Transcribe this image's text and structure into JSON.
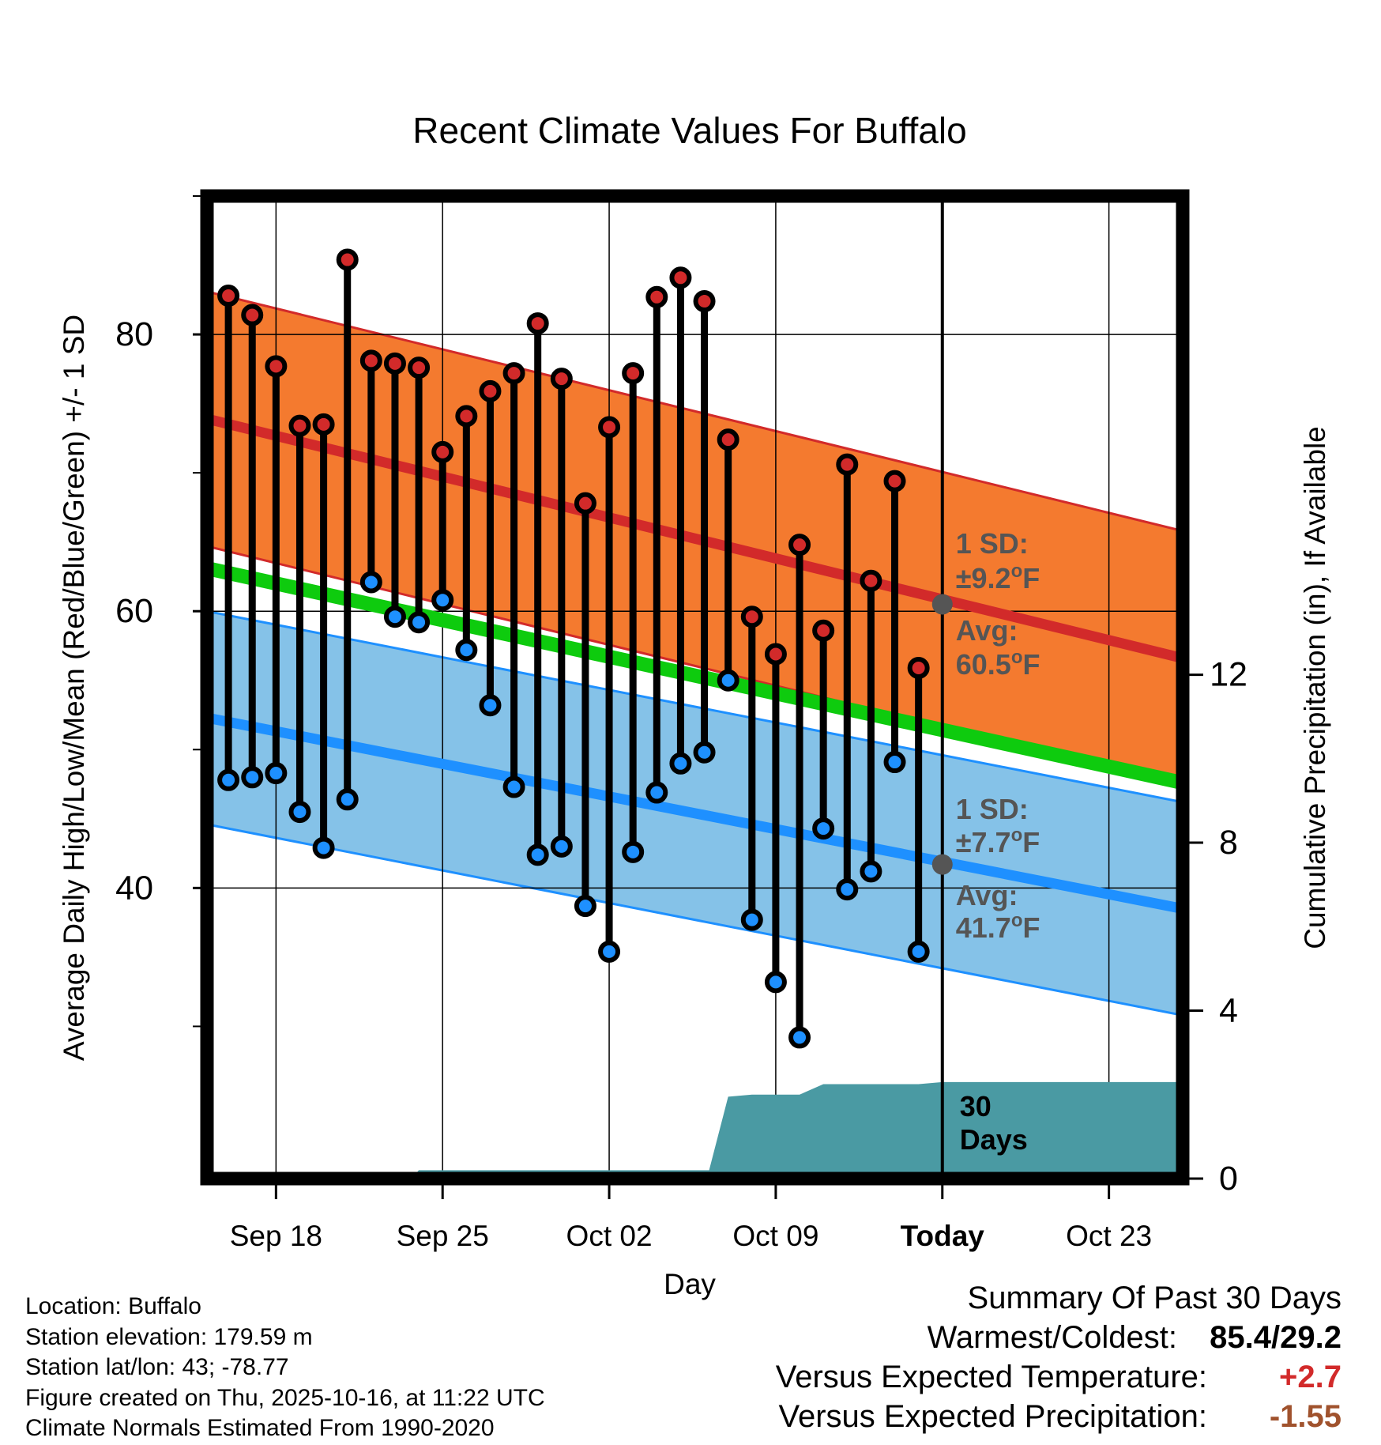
{
  "colors": {
    "high_band": "#f47a2f",
    "high_line": "#d22a2a",
    "low_band": "#85c2e8",
    "low_line": "#1e90ff",
    "mean_line": "#0ecb0e",
    "precip_fill": "#4a9aa3",
    "high_dot": "#d22a2a",
    "low_dot": "#1e90ff",
    "avg_marker": "#555555",
    "warm_text": "#d22a2a",
    "precip_text": "#a0522d",
    "annotation_text": "#555555"
  },
  "chart_data": {
    "type": "line",
    "title": "Recent Climate Values For Buffalo",
    "xlabel": "Day",
    "ylabel": "Average Daily High/Low/Mean (Red/Blue/Green) +/- 1 SD",
    "y2label": "Cumulative Precipitation (in), If Available",
    "xlim": [
      -2.9,
      38.1
    ],
    "ylim": [
      19,
      90
    ],
    "y2lim": [
      0,
      23.4
    ],
    "x_ticks": [
      {
        "x": 0,
        "label": "Sep 18"
      },
      {
        "x": 7,
        "label": "Sep 25"
      },
      {
        "x": 14,
        "label": "Oct 02"
      },
      {
        "x": 21,
        "label": "Oct 09"
      },
      {
        "x": 28,
        "label": "Today"
      },
      {
        "x": 35,
        "label": "Oct 23"
      }
    ],
    "y_ticks": [
      40,
      60,
      80
    ],
    "y_minor_ticks": [
      30,
      50,
      70,
      90
    ],
    "y2_ticks": [
      0,
      4,
      8,
      12
    ],
    "today_x": 28,
    "days": [
      -2,
      -1,
      0,
      1,
      2,
      3,
      4,
      5,
      6,
      7,
      8,
      9,
      10,
      11,
      12,
      13,
      14,
      15,
      16,
      17,
      18,
      19,
      20,
      21,
      22,
      23,
      24,
      25,
      26,
      27
    ],
    "highs": [
      82.8,
      81.4,
      77.7,
      73.4,
      73.5,
      85.4,
      78.1,
      77.9,
      77.6,
      71.5,
      74.1,
      75.9,
      77.2,
      80.8,
      76.8,
      67.8,
      73.3,
      77.2,
      82.7,
      84.1,
      82.4,
      72.4,
      59.6,
      56.9,
      64.8,
      58.6,
      70.6,
      62.2,
      69.4,
      55.9
    ],
    "lows": [
      47.8,
      48.0,
      48.3,
      45.5,
      42.9,
      46.4,
      62.1,
      59.6,
      59.2,
      60.8,
      57.2,
      53.2,
      47.3,
      42.4,
      43.0,
      38.7,
      35.4,
      42.6,
      46.9,
      49.0,
      49.8,
      55.0,
      37.7,
      33.2,
      29.2,
      44.3,
      39.9,
      41.2,
      49.1,
      35.4
    ],
    "normal_high": {
      "x": [
        -2.9,
        38.1
      ],
      "y": [
        73.9,
        56.6
      ]
    },
    "normal_low": {
      "x": [
        -2.9,
        38.1
      ],
      "y": [
        52.3,
        38.5
      ]
    },
    "normal_mean": {
      "x": [
        -2.9,
        38.1
      ],
      "y": [
        63.1,
        47.6
      ]
    },
    "high_sd": 9.2,
    "low_sd": 7.7,
    "precip_series": {
      "x": [
        -2.9,
        5.7,
        6.0,
        7.0,
        8.0,
        9.0,
        10.0,
        11.0,
        12.0,
        13.0,
        14.0,
        15.0,
        16.0,
        17.0,
        18.0,
        18.2,
        19.0,
        20.0,
        21.0,
        22.0,
        23.0,
        24.0,
        25.0,
        26.0,
        27.0,
        28.0,
        38.1
      ],
      "y": [
        0,
        0,
        0.2,
        0.2,
        0.2,
        0.2,
        0.2,
        0.2,
        0.2,
        0.2,
        0.2,
        0.2,
        0.2,
        0.2,
        0.2,
        0.2,
        1.95,
        2.0,
        2.0,
        2.0,
        2.25,
        2.25,
        2.25,
        2.25,
        2.25,
        2.3,
        2.3
      ]
    },
    "annotations": {
      "high_sd": [
        "1 SD:",
        "±9.2",
        "F"
      ],
      "high_avg": [
        "Avg:",
        "60.5",
        "F"
      ],
      "low_sd": [
        "1 SD:",
        "±7.7",
        "F"
      ],
      "low_avg": [
        "Avg:",
        "41.7",
        "F"
      ],
      "degree_sign": "o",
      "high_avg_value": 60.5,
      "low_avg_value": 41.7,
      "precip_days": [
        "30",
        "Days"
      ]
    }
  },
  "info": {
    "location": "Location: Buffalo",
    "elevation": "Station elevation: 179.59 m",
    "latlon": "Station lat/lon: 43; -78.77",
    "created": "Figure created on Thu, 2025-10-16, at 11:22 UTC",
    "normals": "Climate Normals Estimated From 1990-2020"
  },
  "summary": {
    "title": "Summary Of Past 30 Days",
    "warmest_label": "Warmest/Coldest:",
    "warmest_value": "85.4/29.2",
    "temp_label": "Versus Expected Temperature:",
    "temp_value": "+2.7",
    "precip_label": "Versus Expected Precipitation:",
    "precip_value": "-1.55"
  }
}
